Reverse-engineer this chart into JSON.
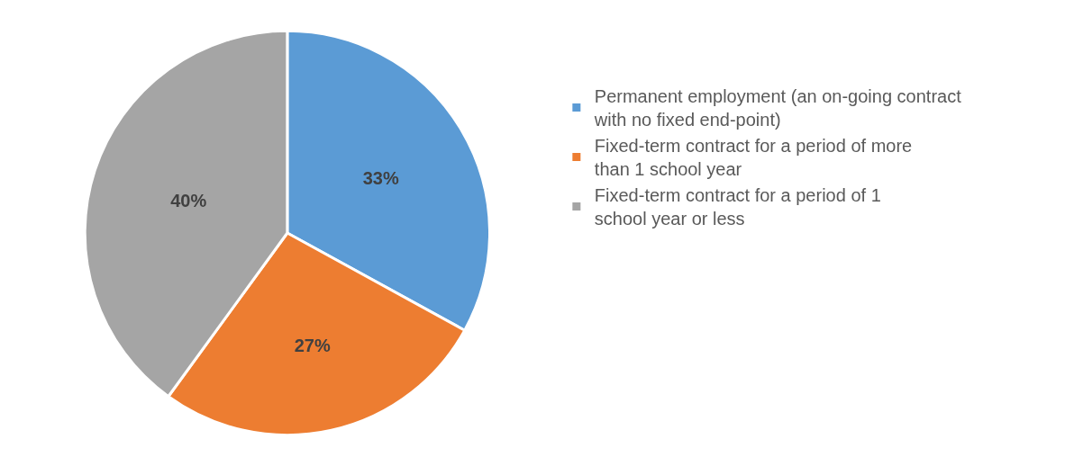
{
  "chart_data": {
    "type": "pie",
    "categories": [
      "Permanent employment (an on-going contract with no fixed end-point)",
      "Fixed-term contract for a period of more than 1 school year",
      "Fixed-term contract for a period of 1 school year or less"
    ],
    "values": [
      33,
      27,
      40
    ],
    "value_labels": [
      "33%",
      "27%",
      "40%"
    ],
    "colors": [
      "#5b9bd5",
      "#ed7d31",
      "#a5a5a5"
    ],
    "legend": "right"
  }
}
